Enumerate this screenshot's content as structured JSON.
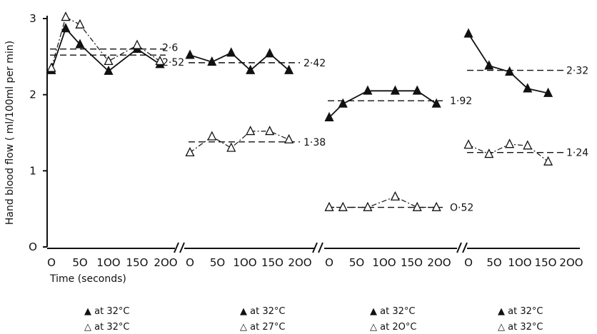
{
  "chart_data": {
    "type": "line",
    "ylabel": "Hand blood flow ( ml/100ml per min)",
    "xlabel": "Time (seconds)",
    "ylim": [
      0,
      3
    ],
    "yticks": [
      "O",
      "1",
      "2",
      "3"
    ],
    "xticks": [
      "O",
      "5O",
      "1OO",
      "15O",
      "2OO"
    ],
    "xlim": [
      0,
      200
    ],
    "grid": false,
    "panels": [
      {
        "series": [
          {
            "marker": "filled-triangle",
            "linestyle": "solid",
            "x": [
              0,
              25,
              50,
              100,
              150,
              190
            ],
            "y": [
              2.32,
              2.87,
              2.66,
              2.31,
              2.6,
              2.4
            ]
          },
          {
            "marker": "open-triangle",
            "linestyle": "dashdot",
            "x": [
              0,
              25,
              50,
              100,
              150,
              190
            ],
            "y": [
              2.35,
              3.02,
              2.92,
              2.44,
              2.65,
              2.44
            ]
          }
        ],
        "refs": [
          {
            "value": 2.6,
            "label": "2·6"
          },
          {
            "value": 2.52,
            "label": "2·52"
          }
        ],
        "legend": {
          "filled": "▲ at 32°C",
          "open": "△ at 32°C"
        }
      },
      {
        "series": [
          {
            "marker": "filled-triangle",
            "linestyle": "solid",
            "x": [
              0,
              40,
              75,
              110,
              145,
              180
            ],
            "y": [
              2.52,
              2.43,
              2.55,
              2.32,
              2.54,
              2.32
            ]
          },
          {
            "marker": "open-triangle",
            "linestyle": "dashdot",
            "x": [
              0,
              40,
              75,
              110,
              145,
              180
            ],
            "y": [
              1.24,
              1.45,
              1.3,
              1.52,
              1.52,
              1.41
            ]
          }
        ],
        "refs": [
          {
            "value": 2.42,
            "label": "2·42"
          },
          {
            "value": 1.38,
            "label": "1·38"
          }
        ],
        "legend": {
          "filled": "▲ at 32°C",
          "open": "△ at 27°C"
        }
      },
      {
        "series": [
          {
            "marker": "filled-triangle",
            "linestyle": "solid",
            "x": [
              0,
              25,
              70,
              120,
              160,
              195
            ],
            "y": [
              1.7,
              1.88,
              2.05,
              2.05,
              2.05,
              1.88
            ]
          },
          {
            "marker": "open-triangle",
            "linestyle": "dashdot",
            "x": [
              0,
              25,
              70,
              120,
              160,
              195
            ],
            "y": [
              0.52,
              0.52,
              0.52,
              0.66,
              0.52,
              0.52
            ]
          }
        ],
        "refs": [
          {
            "value": 1.92,
            "label": "1·92"
          },
          {
            "value": 0.52,
            "label": "O·52"
          }
        ],
        "legend": {
          "filled": "▲ at 32°C",
          "open": "△ at 2O°C"
        }
      },
      {
        "series": [
          {
            "marker": "filled-triangle",
            "linestyle": "solid",
            "x": [
              0,
              40,
              80,
              115,
              155
            ],
            "y": [
              2.8,
              2.38,
              2.3,
              2.08,
              2.02
            ]
          },
          {
            "marker": "open-triangle",
            "linestyle": "dashdot",
            "x": [
              0,
              40,
              80,
              115,
              155
            ],
            "y": [
              1.34,
              1.22,
              1.35,
              1.33,
              1.12
            ]
          }
        ],
        "refs": [
          {
            "value": 2.32,
            "label": "2·32"
          },
          {
            "value": 1.24,
            "label": "1·24"
          }
        ],
        "legend": {
          "filled": "▲ at 32°C",
          "open": "△ at 32°C"
        }
      }
    ]
  }
}
